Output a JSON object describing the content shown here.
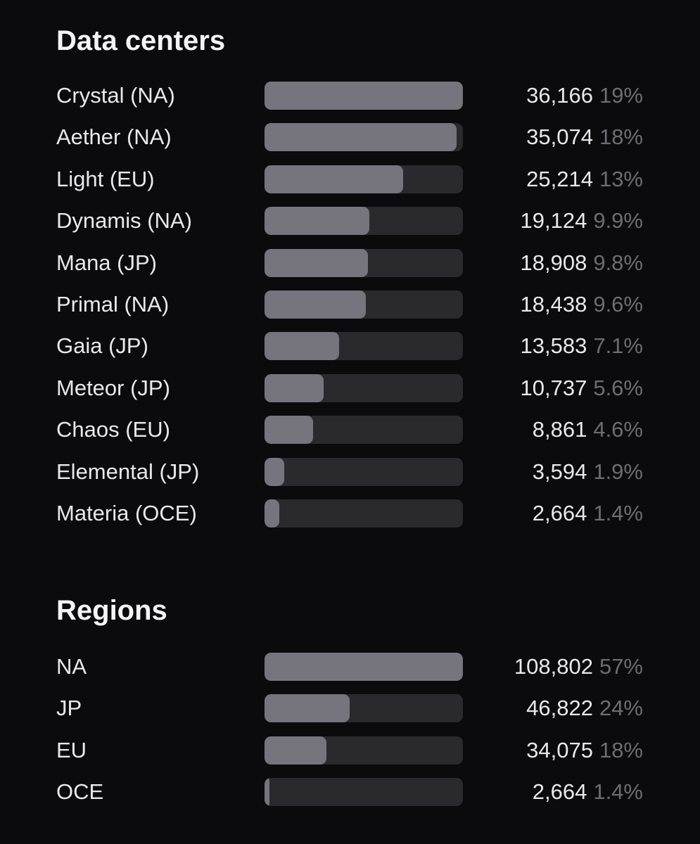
{
  "sections": [
    {
      "title": "Data centers",
      "rows": [
        {
          "label": "Crystal (NA)",
          "count": 36166,
          "count_label": "36,166",
          "share": "19%"
        },
        {
          "label": "Aether (NA)",
          "count": 35074,
          "count_label": "35,074",
          "share": "18%"
        },
        {
          "label": "Light (EU)",
          "count": 25214,
          "count_label": "25,214",
          "share": "13%"
        },
        {
          "label": "Dynamis (NA)",
          "count": 19124,
          "count_label": "19,124",
          "share": "9.9%"
        },
        {
          "label": "Mana (JP)",
          "count": 18908,
          "count_label": "18,908",
          "share": "9.8%"
        },
        {
          "label": "Primal (NA)",
          "count": 18438,
          "count_label": "18,438",
          "share": "9.6%"
        },
        {
          "label": "Gaia (JP)",
          "count": 13583,
          "count_label": "13,583",
          "share": "7.1%"
        },
        {
          "label": "Meteor (JP)",
          "count": 10737,
          "count_label": "10,737",
          "share": "5.6%"
        },
        {
          "label": "Chaos (EU)",
          "count": 8861,
          "count_label": "8,861",
          "share": "4.6%"
        },
        {
          "label": "Elemental (JP)",
          "count": 3594,
          "count_label": "3,594",
          "share": "1.9%"
        },
        {
          "label": "Materia (OCE)",
          "count": 2664,
          "count_label": "2,664",
          "share": "1.4%"
        }
      ]
    },
    {
      "title": "Regions",
      "rows": [
        {
          "label": "NA",
          "count": 108802,
          "count_label": "108,802",
          "share": "57%"
        },
        {
          "label": "JP",
          "count": 46822,
          "count_label": "46,822",
          "share": "24%"
        },
        {
          "label": "EU",
          "count": 34075,
          "count_label": "34,075",
          "share": "18%"
        },
        {
          "label": "OCE",
          "count": 2664,
          "count_label": "2,664",
          "share": "1.4%"
        }
      ]
    }
  ]
}
